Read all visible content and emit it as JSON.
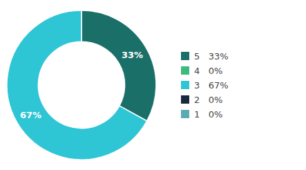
{
  "chart_data": {
    "type": "donut",
    "categories": [
      "5   33%",
      "4   0%",
      "3   67%",
      "2   0%",
      "1   0%"
    ],
    "values": [
      33,
      0,
      67,
      0,
      0
    ],
    "value_labels": [
      "33%",
      null,
      "67%",
      null,
      null
    ],
    "colors": [
      "#1a7068",
      "#3dba7e",
      "#2ec5d5",
      "#192a3e",
      "#5aabb5"
    ],
    "data_labels": true,
    "legend": "right"
  }
}
